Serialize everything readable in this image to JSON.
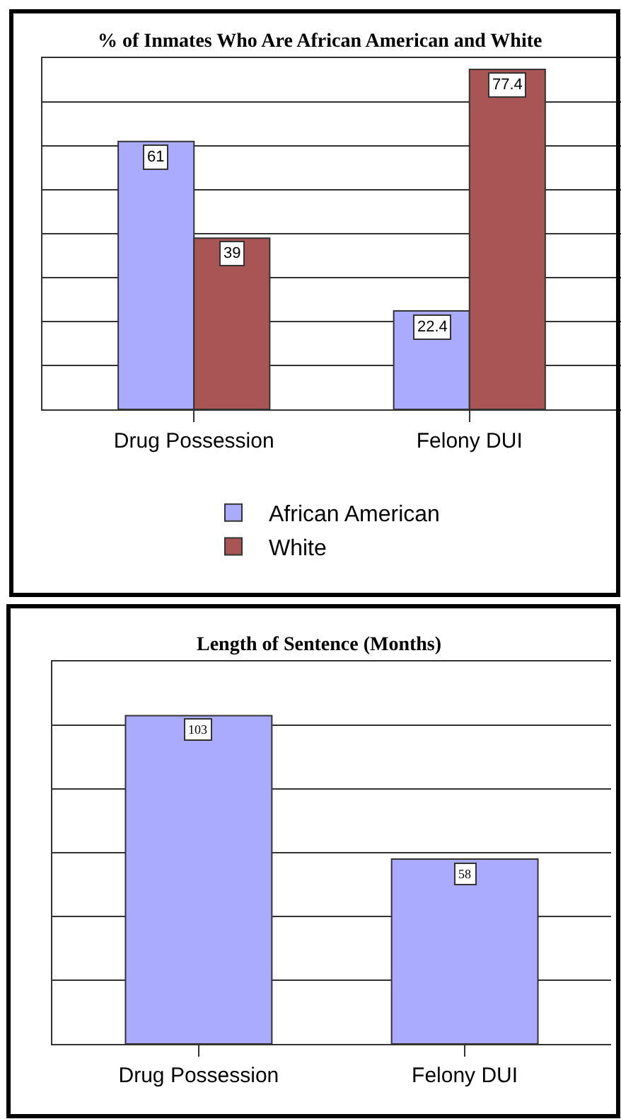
{
  "chart_data": [
    {
      "type": "bar",
      "title": "% of Inmates Who Are African American and White",
      "categories": [
        "Drug Possession",
        "Felony DUI"
      ],
      "series": [
        {
          "name": "African American",
          "color": "#aaaaff",
          "values": [
            61,
            22.4
          ]
        },
        {
          "name": "White",
          "color": "#aa5555",
          "values": [
            39,
            77.4
          ]
        }
      ],
      "ylim": [
        0,
        80
      ],
      "yticks": [
        {
          "value": 0,
          "label": null
        },
        {
          "value": 10,
          "label": null
        },
        {
          "value": 20,
          "label": null
        },
        {
          "value": 30,
          "label": null
        },
        {
          "value": 40,
          "label": null
        },
        {
          "value": 50,
          "label": null
        },
        {
          "value": 60,
          "label": null
        },
        {
          "value": 70,
          "label": null
        },
        {
          "value": 80,
          "label": null
        }
      ],
      "grid": "y",
      "legend": "bottom",
      "data_labels": true,
      "tick_labels": "x"
    },
    {
      "type": "bar",
      "title": "Length of Sentence (Months)",
      "categories": [
        "Drug Possession",
        "Felony DUI"
      ],
      "series": [
        {
          "color": "#aaaaff",
          "values": [
            103,
            58
          ]
        }
      ],
      "ylim": [
        0,
        120
      ],
      "yticks": [
        {
          "value": 0,
          "label": null
        },
        {
          "value": 20,
          "label": null
        },
        {
          "value": 40,
          "label": null
        },
        {
          "value": 60,
          "label": null
        },
        {
          "value": 80,
          "label": null
        },
        {
          "value": 100,
          "label": null
        },
        {
          "value": 120,
          "label": null
        }
      ],
      "grid": "y",
      "data_labels": true,
      "tick_labels": "x"
    }
  ]
}
